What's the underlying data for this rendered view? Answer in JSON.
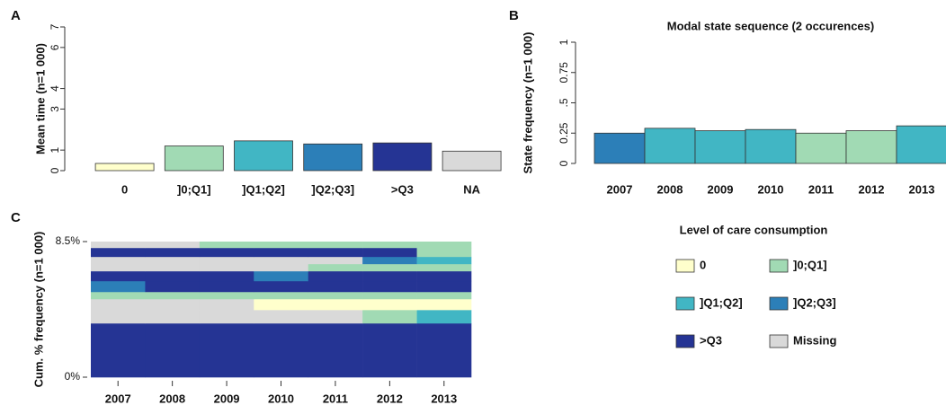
{
  "chart_data": [
    {
      "type": "bar",
      "panel": "A",
      "ylabel": "Mean time (n=1 000)",
      "categories": [
        "0",
        "]0;Q1]",
        "]Q1;Q2]",
        "]Q2;Q3]",
        ">Q3",
        "NA"
      ],
      "values": [
        0.35,
        1.2,
        1.45,
        1.3,
        1.35,
        0.95
      ],
      "colors": [
        "#ffffcc",
        "#a1dab4",
        "#41b6c4",
        "#2c7fb8",
        "#253494",
        "#d9d9d9"
      ],
      "ylim": [
        0,
        7
      ],
      "yticks": [
        0,
        1,
        3,
        4,
        6,
        7
      ]
    },
    {
      "type": "bar",
      "panel": "B",
      "title": "Modal state sequence (2 occurences)",
      "ylabel": "State frequency (n=1 000)",
      "categories": [
        "2007",
        "2008",
        "2009",
        "2010",
        "2011",
        "2012",
        "2013"
      ],
      "values": [
        0.25,
        0.29,
        0.27,
        0.28,
        0.25,
        0.27,
        0.31
      ],
      "colors": [
        "#2c7fb8",
        "#41b6c4",
        "#41b6c4",
        "#41b6c4",
        "#a1dab4",
        "#a1dab4",
        "#41b6c4"
      ],
      "ylim": [
        0,
        1
      ],
      "yticks": [
        0,
        0.25,
        {
          "value": 0.5,
          "label": ".5"
        },
        0.75,
        1
      ]
    },
    {
      "type": "sequence",
      "panel": "C",
      "ylabel": "Cum. % frequency (n=1 000)",
      "categories": [
        "2007",
        "2008",
        "2009",
        "2010",
        "2011",
        "2012",
        "2013"
      ],
      "ylim": [
        0,
        8.5
      ],
      "yticks": [
        {
          "value": 0,
          "label": "0%"
        },
        {
          "value": 8.5,
          "label": "8.5%"
        }
      ],
      "rows": [
        {
          "height": 3.38,
          "states": [
            4,
            4,
            4,
            4,
            4,
            4,
            4
          ]
        },
        {
          "height": 0.84,
          "states": [
            5,
            5,
            5,
            5,
            5,
            1,
            2
          ]
        },
        {
          "height": 0.68,
          "states": [
            5,
            5,
            5,
            0,
            0,
            0,
            0
          ]
        },
        {
          "height": 0.45,
          "states": [
            1,
            1,
            1,
            1,
            1,
            1,
            1
          ]
        },
        {
          "height": 0.68,
          "states": [
            3,
            4,
            4,
            4,
            4,
            4,
            4
          ]
        },
        {
          "height": 0.62,
          "states": [
            4,
            4,
            4,
            3,
            4,
            4,
            4
          ]
        },
        {
          "height": 0.45,
          "states": [
            5,
            5,
            5,
            5,
            1,
            1,
            1
          ]
        },
        {
          "height": 0.45,
          "states": [
            5,
            5,
            5,
            5,
            5,
            3,
            2
          ]
        },
        {
          "height": 0.56,
          "states": [
            4,
            4,
            4,
            4,
            4,
            4,
            1
          ]
        },
        {
          "height": 0.39,
          "states": [
            5,
            5,
            1,
            1,
            1,
            1,
            1
          ]
        }
      ]
    }
  ],
  "legend": {
    "title": "Level of care consumption",
    "entries": [
      {
        "name": "0",
        "color": "#ffffcc"
      },
      {
        "name": "]0;Q1]",
        "color": "#a1dab4"
      },
      {
        "name": "]Q1;Q2]",
        "color": "#41b6c4"
      },
      {
        "name": "]Q2;Q3]",
        "color": "#2c7fb8"
      },
      {
        "name": ">Q3",
        "color": "#253494"
      },
      {
        "name": "Missing",
        "color": "#d9d9d9"
      }
    ]
  }
}
